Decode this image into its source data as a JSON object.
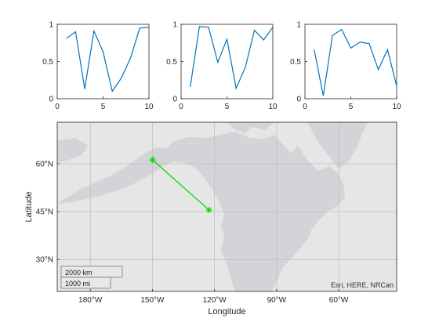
{
  "chart_data": [
    {
      "type": "line",
      "x": [
        1,
        2,
        3,
        4,
        5,
        6,
        7,
        8,
        9,
        10
      ],
      "values": [
        0.81,
        0.9,
        0.13,
        0.91,
        0.63,
        0.1,
        0.28,
        0.55,
        0.95,
        0.96
      ],
      "xlim": [
        0,
        10
      ],
      "ylim": [
        0,
        1
      ],
      "xticks": [
        "0",
        "5",
        "10"
      ],
      "yticks": [
        "0",
        "0.5",
        "1"
      ],
      "color": "#0072bd"
    },
    {
      "type": "line",
      "x": [
        1,
        2,
        3,
        4,
        5,
        6,
        7,
        8,
        9,
        10
      ],
      "values": [
        0.16,
        0.97,
        0.96,
        0.49,
        0.8,
        0.14,
        0.42,
        0.92,
        0.79,
        0.96
      ],
      "xlim": [
        0,
        10
      ],
      "ylim": [
        0,
        1
      ],
      "xticks": [
        "0",
        "5",
        "10"
      ],
      "yticks": [
        "0",
        "0.5",
        "1"
      ],
      "color": "#0072bd"
    },
    {
      "type": "line",
      "x": [
        1,
        2,
        3,
        4,
        5,
        6,
        7,
        8,
        9,
        10
      ],
      "values": [
        0.66,
        0.04,
        0.85,
        0.93,
        0.68,
        0.76,
        0.74,
        0.39,
        0.66,
        0.17
      ],
      "xlim": [
        0,
        10
      ],
      "ylim": [
        0,
        1
      ],
      "xticks": [
        "0",
        "5",
        "10"
      ],
      "yticks": [
        "0",
        "0.5",
        "1"
      ],
      "color": "#0072bd"
    },
    {
      "type": "map",
      "xlabel": "Longitude",
      "ylabel": "Latitude",
      "lon_range": [
        -196,
        -32
      ],
      "lat_range": [
        20,
        73
      ],
      "lon_ticks": [
        {
          "value": -180,
          "label": "180°W"
        },
        {
          "value": -150,
          "label": "150°W"
        },
        {
          "value": -120,
          "label": "120°W"
        },
        {
          "value": -90,
          "label": "90°W"
        },
        {
          "value": -60,
          "label": "60°W"
        }
      ],
      "lat_ticks": [
        {
          "value": 60,
          "label": "60°N"
        },
        {
          "value": 45,
          "label": "45°N"
        },
        {
          "value": 30,
          "label": "30°N"
        }
      ],
      "route": {
        "lon": [
          -149.9,
          -122.7
        ],
        "lat": [
          61.2,
          45.5
        ],
        "color": "#00e000",
        "marker": "asterisk"
      },
      "grid": true,
      "attribution": "Esri, HERE, NRCan",
      "scalebar": {
        "km": "2000 km",
        "mi": "1000 mi"
      }
    }
  ]
}
